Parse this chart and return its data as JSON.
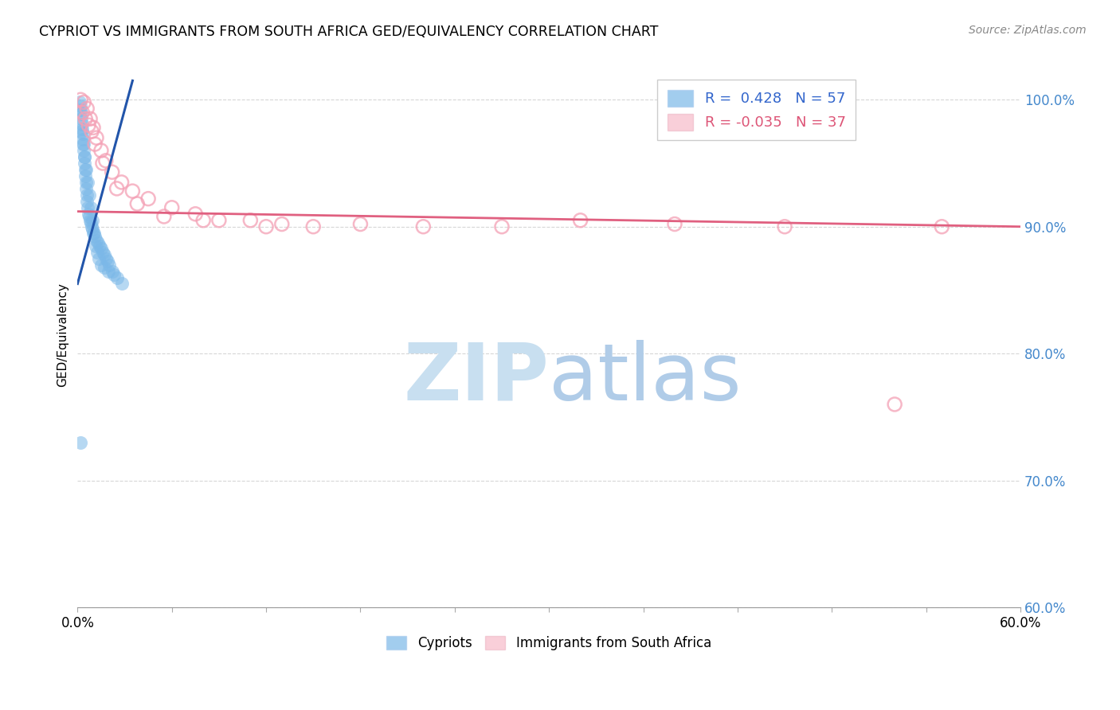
{
  "title": "CYPRIOT VS IMMIGRANTS FROM SOUTH AFRICA GED/EQUIVALENCY CORRELATION CHART",
  "source": "Source: ZipAtlas.com",
  "ylabel": "GED/Equivalency",
  "yticks": [
    60.0,
    70.0,
    80.0,
    90.0,
    100.0
  ],
  "xticks": [
    0.0,
    6.0,
    12.0,
    18.0,
    24.0,
    30.0,
    36.0,
    42.0,
    48.0,
    54.0,
    60.0
  ],
  "xmin": 0.0,
  "xmax": 60.0,
  "ymin": 60.0,
  "ymax": 103.0,
  "cypriot_R": 0.428,
  "cypriot_N": 57,
  "imm_R": -0.035,
  "imm_N": 37,
  "cypriot_color": "#7bb8e8",
  "imm_color": "#f4a0b5",
  "trendline_blue": "#2255aa",
  "trendline_pink": "#e06080",
  "watermark_zip_color": "#c8dff0",
  "watermark_atlas_color": "#b0cce8",
  "background_color": "#ffffff",
  "legend_box_color": "#f0f4ff",
  "legend_text_blue": "#3366cc",
  "legend_text_pink": "#dd5577",
  "ytick_color": "#4488cc",
  "cypriot_x": [
    0.15,
    0.18,
    0.2,
    0.22,
    0.25,
    0.28,
    0.3,
    0.32,
    0.35,
    0.38,
    0.4,
    0.42,
    0.45,
    0.48,
    0.5,
    0.52,
    0.55,
    0.58,
    0.6,
    0.65,
    0.7,
    0.75,
    0.8,
    0.85,
    0.9,
    0.95,
    1.0,
    1.1,
    1.2,
    1.3,
    1.4,
    1.5,
    1.6,
    1.7,
    1.8,
    1.9,
    2.0,
    2.2,
    2.5,
    2.8,
    0.25,
    0.35,
    0.45,
    0.55,
    0.65,
    0.75,
    0.85,
    0.95,
    1.05,
    1.15,
    1.25,
    1.35,
    1.5,
    1.7,
    1.95,
    2.3,
    0.2
  ],
  "cypriot_y": [
    99.8,
    99.5,
    99.2,
    98.9,
    98.5,
    98.1,
    97.7,
    97.3,
    96.9,
    96.5,
    96.0,
    95.5,
    95.0,
    94.5,
    94.0,
    93.5,
    93.0,
    92.5,
    92.0,
    91.5,
    91.0,
    90.8,
    90.5,
    90.3,
    90.0,
    89.8,
    89.5,
    89.2,
    88.9,
    88.7,
    88.5,
    88.3,
    88.0,
    87.8,
    87.5,
    87.3,
    87.0,
    86.5,
    86.0,
    85.5,
    97.5,
    96.5,
    95.5,
    94.5,
    93.5,
    92.5,
    91.5,
    90.5,
    89.5,
    88.5,
    88.0,
    87.5,
    87.0,
    86.8,
    86.5,
    86.2,
    73.0
  ],
  "imm_x": [
    0.2,
    0.4,
    0.6,
    0.8,
    1.0,
    1.2,
    1.5,
    1.8,
    2.2,
    2.8,
    3.5,
    4.5,
    6.0,
    7.5,
    9.0,
    11.0,
    13.0,
    15.0,
    18.0,
    22.0,
    27.0,
    32.0,
    38.0,
    45.0,
    52.0,
    55.0,
    0.3,
    0.7,
    1.1,
    1.6,
    2.5,
    3.8,
    5.5,
    8.0,
    12.0,
    0.5,
    0.9
  ],
  "imm_y": [
    100.0,
    99.8,
    99.3,
    98.5,
    97.8,
    97.0,
    96.0,
    95.2,
    94.3,
    93.5,
    92.8,
    92.2,
    91.5,
    91.0,
    90.5,
    90.5,
    90.2,
    90.0,
    90.2,
    90.0,
    90.0,
    90.5,
    90.2,
    90.0,
    76.0,
    90.0,
    99.0,
    98.0,
    96.5,
    95.0,
    93.0,
    91.8,
    90.8,
    90.5,
    90.0,
    98.5,
    97.5
  ],
  "blue_trendline_x0": 0.0,
  "blue_trendline_y0": 85.5,
  "blue_trendline_x1": 3.5,
  "blue_trendline_y1": 101.5,
  "pink_trendline_x0": 0.0,
  "pink_trendline_y0": 91.2,
  "pink_trendline_x1": 60.0,
  "pink_trendline_y1": 90.0
}
